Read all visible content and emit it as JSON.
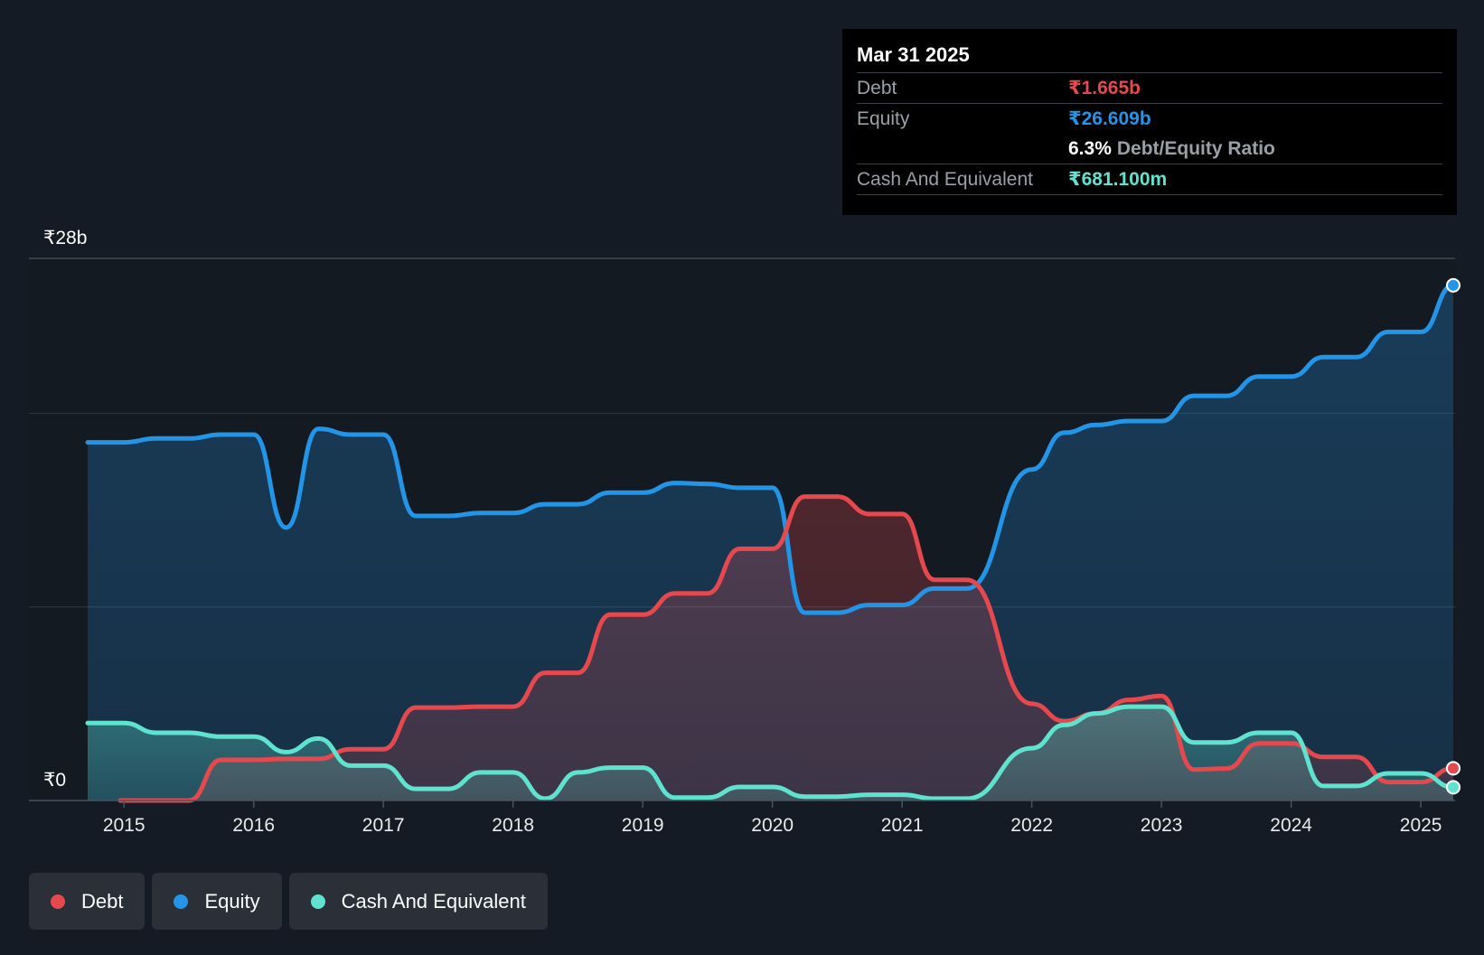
{
  "colors": {
    "debt": "#e5484d",
    "equity": "#2394e6",
    "cash": "#5fe3cf",
    "background": "#151b24",
    "grid": "#2c3440"
  },
  "tooltip": {
    "date": "Mar 31 2025",
    "debt_label": "Debt",
    "debt_value": "₹1.665b",
    "equity_label": "Equity",
    "equity_value": "₹26.609b",
    "ratio_value": "6.3%",
    "ratio_label": "Debt/Equity Ratio",
    "cash_label": "Cash And Equivalent",
    "cash_value": "₹681.100m"
  },
  "legend": {
    "debt": "Debt",
    "equity": "Equity",
    "cash": "Cash And Equivalent"
  },
  "chart_data": {
    "type": "area",
    "title": "",
    "xlabel": "",
    "ylabel": "",
    "y_axis_labels": [
      "₹28b",
      "₹0"
    ],
    "ylim": [
      0,
      28
    ],
    "xlim": [
      2014.72,
      2025.25
    ],
    "x_ticks": [
      2015,
      2016,
      2017,
      2018,
      2019,
      2020,
      2021,
      2022,
      2023,
      2024,
      2025
    ],
    "x_tick_labels": [
      "2015",
      "2016",
      "2017",
      "2018",
      "2019",
      "2020",
      "2021",
      "2022",
      "2023",
      "2024",
      "2025"
    ],
    "grid": true,
    "series": [
      {
        "name": "Debt",
        "key": "debt",
        "points": [
          [
            2014.97,
            0
          ],
          [
            2015.0,
            0
          ],
          [
            2015.25,
            0
          ],
          [
            2015.5,
            0
          ],
          [
            2015.75,
            2.1
          ],
          [
            2016.0,
            2.1
          ],
          [
            2016.25,
            2.15
          ],
          [
            2016.5,
            2.15
          ],
          [
            2016.75,
            2.65
          ],
          [
            2017.0,
            2.65
          ],
          [
            2017.25,
            4.8
          ],
          [
            2017.5,
            4.8
          ],
          [
            2017.75,
            4.85
          ],
          [
            2018.0,
            4.85
          ],
          [
            2018.25,
            6.6
          ],
          [
            2018.5,
            6.6
          ],
          [
            2018.75,
            9.6
          ],
          [
            2019.0,
            9.6
          ],
          [
            2019.25,
            10.7
          ],
          [
            2019.5,
            10.7
          ],
          [
            2019.75,
            13.0
          ],
          [
            2020.0,
            13.0
          ],
          [
            2020.25,
            15.7
          ],
          [
            2020.5,
            15.7
          ],
          [
            2020.75,
            14.8
          ],
          [
            2021.0,
            14.8
          ],
          [
            2021.25,
            11.4
          ],
          [
            2021.5,
            11.4
          ],
          [
            2022.0,
            5.0
          ],
          [
            2022.25,
            4.1
          ],
          [
            2022.5,
            4.5
          ],
          [
            2022.75,
            5.2
          ],
          [
            2023.0,
            5.4
          ],
          [
            2023.25,
            1.6
          ],
          [
            2023.5,
            1.65
          ],
          [
            2023.75,
            2.95
          ],
          [
            2024.0,
            2.95
          ],
          [
            2024.25,
            2.25
          ],
          [
            2024.5,
            2.25
          ],
          [
            2024.75,
            0.95
          ],
          [
            2025.0,
            0.95
          ],
          [
            2025.25,
            1.665
          ]
        ]
      },
      {
        "name": "Equity",
        "key": "equity",
        "points": [
          [
            2014.72,
            18.5
          ],
          [
            2015.0,
            18.5
          ],
          [
            2015.25,
            18.7
          ],
          [
            2015.5,
            18.7
          ],
          [
            2015.75,
            18.9
          ],
          [
            2016.0,
            18.9
          ],
          [
            2016.25,
            14.1
          ],
          [
            2016.5,
            19.2
          ],
          [
            2016.75,
            18.9
          ],
          [
            2017.0,
            18.9
          ],
          [
            2017.25,
            14.7
          ],
          [
            2017.5,
            14.7
          ],
          [
            2017.75,
            14.85
          ],
          [
            2018.0,
            14.85
          ],
          [
            2018.25,
            15.3
          ],
          [
            2018.5,
            15.3
          ],
          [
            2018.75,
            15.9
          ],
          [
            2019.0,
            15.9
          ],
          [
            2019.25,
            16.4
          ],
          [
            2019.5,
            16.35
          ],
          [
            2019.75,
            16.15
          ],
          [
            2020.0,
            16.15
          ],
          [
            2020.25,
            9.7
          ],
          [
            2020.5,
            9.7
          ],
          [
            2020.75,
            10.1
          ],
          [
            2021.0,
            10.1
          ],
          [
            2021.25,
            10.95
          ],
          [
            2021.5,
            10.95
          ],
          [
            2022.0,
            17.1
          ],
          [
            2022.25,
            19.0
          ],
          [
            2022.5,
            19.4
          ],
          [
            2022.75,
            19.6
          ],
          [
            2023.0,
            19.6
          ],
          [
            2023.25,
            20.9
          ],
          [
            2023.5,
            20.9
          ],
          [
            2023.75,
            21.9
          ],
          [
            2024.0,
            21.9
          ],
          [
            2024.25,
            22.9
          ],
          [
            2024.5,
            22.9
          ],
          [
            2024.75,
            24.2
          ],
          [
            2025.0,
            24.2
          ],
          [
            2025.25,
            26.609
          ]
        ]
      },
      {
        "name": "Cash And Equivalent",
        "key": "cash",
        "points": [
          [
            2014.72,
            4.0
          ],
          [
            2015.0,
            4.0
          ],
          [
            2015.25,
            3.5
          ],
          [
            2015.5,
            3.5
          ],
          [
            2015.75,
            3.3
          ],
          [
            2016.0,
            3.3
          ],
          [
            2016.25,
            2.5
          ],
          [
            2016.5,
            3.2
          ],
          [
            2016.75,
            1.8
          ],
          [
            2017.0,
            1.8
          ],
          [
            2017.25,
            0.6
          ],
          [
            2017.5,
            0.6
          ],
          [
            2017.75,
            1.45
          ],
          [
            2018.0,
            1.45
          ],
          [
            2018.25,
            0.1
          ],
          [
            2018.5,
            1.45
          ],
          [
            2018.75,
            1.7
          ],
          [
            2019.0,
            1.7
          ],
          [
            2019.25,
            0.15
          ],
          [
            2019.5,
            0.15
          ],
          [
            2019.75,
            0.7
          ],
          [
            2020.0,
            0.7
          ],
          [
            2020.25,
            0.2
          ],
          [
            2020.5,
            0.2
          ],
          [
            2020.75,
            0.3
          ],
          [
            2021.0,
            0.3
          ],
          [
            2021.25,
            0.1
          ],
          [
            2021.5,
            0.1
          ],
          [
            2022.0,
            2.7
          ],
          [
            2022.25,
            3.9
          ],
          [
            2022.5,
            4.5
          ],
          [
            2022.75,
            4.85
          ],
          [
            2023.0,
            4.85
          ],
          [
            2023.25,
            3.0
          ],
          [
            2023.5,
            3.0
          ],
          [
            2023.75,
            3.5
          ],
          [
            2024.0,
            3.5
          ],
          [
            2024.25,
            0.75
          ],
          [
            2024.5,
            0.75
          ],
          [
            2024.75,
            1.4
          ],
          [
            2025.0,
            1.4
          ],
          [
            2025.25,
            0.6811
          ]
        ]
      }
    ]
  }
}
